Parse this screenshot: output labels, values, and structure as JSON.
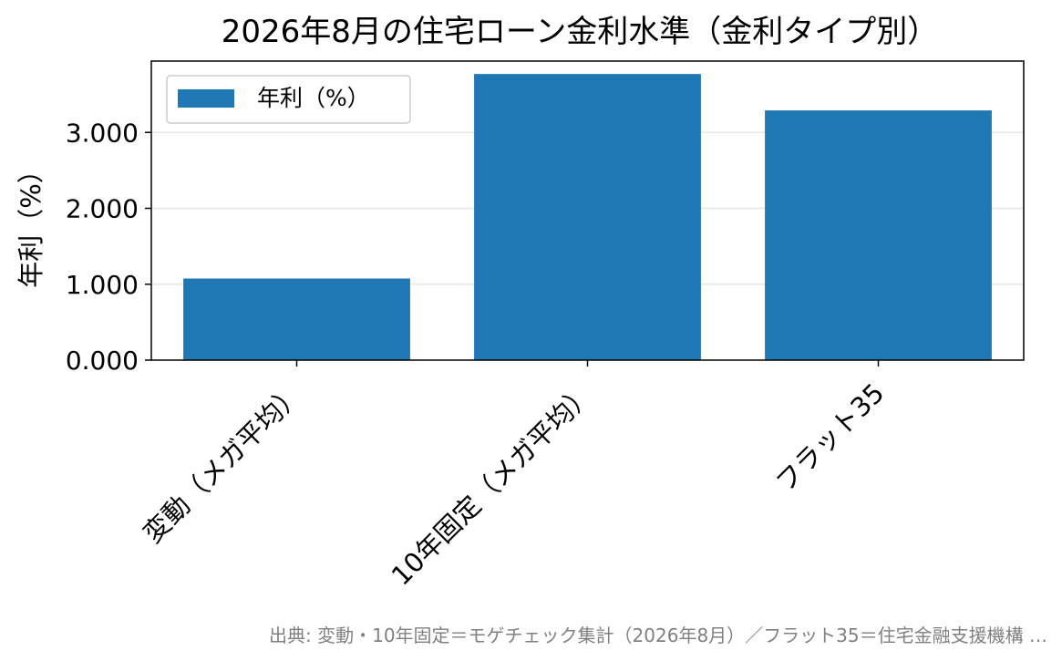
{
  "chart_data": {
    "type": "bar",
    "title": "2026年8月の住宅ローン金利水準（金利タイプ別）",
    "ylabel": "年利（%）",
    "xlabel": "",
    "categories": [
      "変動（メガ平均）",
      "10年固定（メガ平均）",
      "フラット35"
    ],
    "series": [
      {
        "name": "年利（%）",
        "values": [
          1.075,
          3.77,
          3.29
        ],
        "color": "#1f77b4"
      }
    ],
    "ylim": [
      0,
      3.94
    ],
    "yticks": [
      0,
      1,
      2,
      3
    ],
    "ytick_labels": [
      "0.000",
      "1.000",
      "2.000",
      "3.000"
    ],
    "grid": "horizontal",
    "legend_position": "upper-left",
    "source_note": "出典: 変動・10年固定＝モゲチェック集計（2026年8月）／フラット35＝住宅金融支援機構 …"
  }
}
